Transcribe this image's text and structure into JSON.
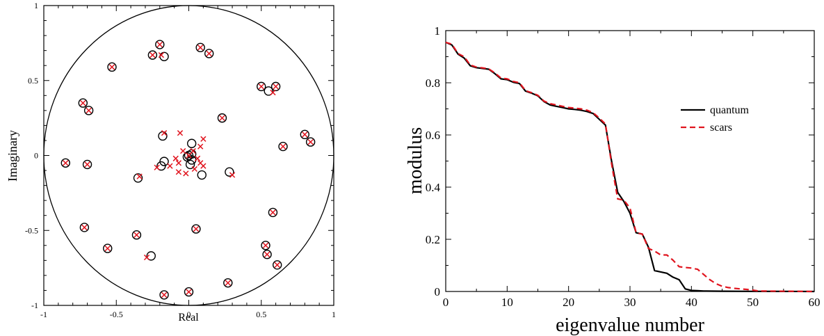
{
  "chart_data": [
    {
      "type": "scatter",
      "xlabel": "Real",
      "ylabel": "Imaginary",
      "xlim": [
        -1,
        1
      ],
      "ylim": [
        -1,
        1
      ],
      "x_ticks": [
        -1,
        -0.5,
        0,
        0.5,
        1
      ],
      "y_ticks": [
        -1,
        -0.5,
        0,
        0.5,
        1
      ],
      "x_tick_labels": [
        "-1",
        "-0.5",
        "0",
        "0.5",
        "1"
      ],
      "y_tick_labels": [
        "-1",
        "-0.5",
        "0",
        "0.5",
        "1"
      ],
      "unit_circle": true,
      "grid": false,
      "colors": {
        "circles": "#000000",
        "crosses": "#e0141e",
        "frame": "#000000"
      },
      "series": [
        {
          "marker": "open-circle",
          "points": [
            [
              -0.2,
              0.74
            ],
            [
              0.08,
              0.72
            ],
            [
              0.14,
              0.68
            ],
            [
              -0.25,
              0.67
            ],
            [
              -0.17,
              0.66
            ],
            [
              -0.53,
              0.59
            ],
            [
              0.5,
              0.46
            ],
            [
              0.6,
              0.46
            ],
            [
              0.55,
              0.43
            ],
            [
              -0.73,
              0.35
            ],
            [
              -0.69,
              0.3
            ],
            [
              0.23,
              0.25
            ],
            [
              0.8,
              0.14
            ],
            [
              0.84,
              0.09
            ],
            [
              -0.18,
              0.13
            ],
            [
              0.65,
              0.06
            ],
            [
              0.02,
              0.08
            ],
            [
              -0.85,
              -0.05
            ],
            [
              -0.7,
              -0.06
            ],
            [
              0.0,
              0.0
            ],
            [
              0.02,
              0.01
            ],
            [
              -0.01,
              -0.01
            ],
            [
              -0.19,
              -0.07
            ],
            [
              -0.17,
              -0.04
            ],
            [
              0.02,
              -0.03
            ],
            [
              0.01,
              -0.06
            ],
            [
              0.09,
              -0.13
            ],
            [
              0.28,
              -0.11
            ],
            [
              -0.35,
              -0.15
            ],
            [
              0.58,
              -0.38
            ],
            [
              -0.72,
              -0.48
            ],
            [
              0.05,
              -0.49
            ],
            [
              -0.36,
              -0.53
            ],
            [
              0.53,
              -0.6
            ],
            [
              -0.56,
              -0.62
            ],
            [
              0.54,
              -0.66
            ],
            [
              -0.26,
              -0.67
            ],
            [
              0.61,
              -0.73
            ],
            [
              0.27,
              -0.85
            ],
            [
              0.0,
              -0.91
            ],
            [
              -0.17,
              -0.93
            ]
          ]
        },
        {
          "marker": "cross",
          "points": [
            [
              -0.2,
              0.74
            ],
            [
              0.08,
              0.72
            ],
            [
              0.14,
              0.68
            ],
            [
              -0.25,
              0.67
            ],
            [
              -0.19,
              0.67
            ],
            [
              -0.53,
              0.59
            ],
            [
              0.5,
              0.46
            ],
            [
              0.6,
              0.46
            ],
            [
              0.58,
              0.42
            ],
            [
              -0.73,
              0.35
            ],
            [
              -0.69,
              0.3
            ],
            [
              0.23,
              0.25
            ],
            [
              0.8,
              0.14
            ],
            [
              0.84,
              0.09
            ],
            [
              -0.17,
              0.15
            ],
            [
              -0.06,
              0.15
            ],
            [
              0.1,
              0.11
            ],
            [
              0.65,
              0.06
            ],
            [
              0.08,
              0.06
            ],
            [
              -0.04,
              0.03
            ],
            [
              0.03,
              0.03
            ],
            [
              -0.09,
              -0.02
            ],
            [
              0.06,
              -0.02
            ],
            [
              -0.85,
              -0.05
            ],
            [
              -0.7,
              -0.06
            ],
            [
              0.0,
              0.0
            ],
            [
              0.08,
              -0.05
            ],
            [
              0.1,
              -0.07
            ],
            [
              -0.07,
              -0.05
            ],
            [
              -0.13,
              -0.07
            ],
            [
              -0.22,
              -0.08
            ],
            [
              0.04,
              -0.09
            ],
            [
              -0.07,
              -0.11
            ],
            [
              -0.02,
              -0.12
            ],
            [
              0.3,
              -0.13
            ],
            [
              -0.34,
              -0.14
            ],
            [
              0.58,
              -0.38
            ],
            [
              -0.72,
              -0.48
            ],
            [
              0.05,
              -0.49
            ],
            [
              -0.36,
              -0.53
            ],
            [
              0.53,
              -0.6
            ],
            [
              -0.56,
              -0.62
            ],
            [
              0.54,
              -0.66
            ],
            [
              -0.29,
              -0.68
            ],
            [
              0.61,
              -0.73
            ],
            [
              0.27,
              -0.85
            ],
            [
              0.0,
              -0.91
            ],
            [
              -0.17,
              -0.93
            ]
          ]
        }
      ]
    },
    {
      "type": "line",
      "xlabel": "eigenvalue number",
      "ylabel": "modulus",
      "xlim": [
        0,
        60
      ],
      "ylim": [
        0,
        1
      ],
      "x_ticks": [
        0,
        10,
        20,
        30,
        40,
        50,
        60
      ],
      "y_ticks": [
        0,
        0.2,
        0.4,
        0.6,
        0.8,
        1
      ],
      "x_tick_labels": [
        "0",
        "10",
        "20",
        "30",
        "40",
        "50",
        "60"
      ],
      "y_tick_labels": [
        "0",
        "0.2",
        "0.4",
        "0.6",
        "0.8",
        "1"
      ],
      "grid": false,
      "legend_position": "upper-right, inside",
      "series": [
        {
          "name": "quantum",
          "color": "#000000",
          "dash": "solid",
          "points": [
            [
              0,
              0.955
            ],
            [
              1,
              0.945
            ],
            [
              2,
              0.91
            ],
            [
              3,
              0.895
            ],
            [
              4,
              0.865
            ],
            [
              5,
              0.858
            ],
            [
              6,
              0.855
            ],
            [
              7,
              0.852
            ],
            [
              8,
              0.835
            ],
            [
              9,
              0.815
            ],
            [
              10,
              0.812
            ],
            [
              11,
              0.802
            ],
            [
              12,
              0.797
            ],
            [
              13,
              0.768
            ],
            [
              14,
              0.76
            ],
            [
              15,
              0.75
            ],
            [
              16,
              0.728
            ],
            [
              17,
              0.715
            ],
            [
              18,
              0.71
            ],
            [
              19,
              0.705
            ],
            [
              20,
              0.7
            ],
            [
              21,
              0.698
            ],
            [
              22,
              0.695
            ],
            [
              23,
              0.69
            ],
            [
              24,
              0.682
            ],
            [
              25,
              0.66
            ],
            [
              26,
              0.638
            ],
            [
              27,
              0.5
            ],
            [
              28,
              0.38
            ],
            [
              29,
              0.345
            ],
            [
              30,
              0.3
            ],
            [
              31,
              0.225
            ],
            [
              32,
              0.22
            ],
            [
              33,
              0.17
            ],
            [
              34,
              0.08
            ],
            [
              35,
              0.075
            ],
            [
              36,
              0.07
            ],
            [
              37,
              0.055
            ],
            [
              38,
              0.045
            ],
            [
              39,
              0.01
            ],
            [
              40,
              0.004
            ],
            [
              41,
              0.003
            ],
            [
              42,
              0.002
            ],
            [
              45,
              0.001
            ],
            [
              50,
              0.0005
            ],
            [
              55,
              0.0002
            ],
            [
              60,
              0.0
            ]
          ]
        },
        {
          "name": "scars",
          "color": "#e0141e",
          "dash": "dashed",
          "points": [
            [
              0,
              0.955
            ],
            [
              1,
              0.948
            ],
            [
              2,
              0.912
            ],
            [
              3,
              0.9
            ],
            [
              4,
              0.868
            ],
            [
              5,
              0.86
            ],
            [
              6,
              0.857
            ],
            [
              7,
              0.853
            ],
            [
              8,
              0.838
            ],
            [
              9,
              0.818
            ],
            [
              10,
              0.815
            ],
            [
              11,
              0.805
            ],
            [
              12,
              0.8
            ],
            [
              13,
              0.77
            ],
            [
              14,
              0.762
            ],
            [
              15,
              0.752
            ],
            [
              16,
              0.73
            ],
            [
              17,
              0.72
            ],
            [
              18,
              0.715
            ],
            [
              19,
              0.71
            ],
            [
              20,
              0.705
            ],
            [
              21,
              0.703
            ],
            [
              22,
              0.7
            ],
            [
              23,
              0.695
            ],
            [
              24,
              0.685
            ],
            [
              25,
              0.665
            ],
            [
              26,
              0.642
            ],
            [
              27,
              0.49
            ],
            [
              28,
              0.355
            ],
            [
              29,
              0.35
            ],
            [
              30,
              0.32
            ],
            [
              31,
              0.225
            ],
            [
              32,
              0.22
            ],
            [
              33,
              0.165
            ],
            [
              34,
              0.155
            ],
            [
              35,
              0.14
            ],
            [
              36,
              0.14
            ],
            [
              37,
              0.12
            ],
            [
              38,
              0.095
            ],
            [
              39,
              0.092
            ],
            [
              40,
              0.09
            ],
            [
              41,
              0.085
            ],
            [
              42,
              0.065
            ],
            [
              43,
              0.045
            ],
            [
              44,
              0.03
            ],
            [
              45,
              0.02
            ],
            [
              46,
              0.015
            ],
            [
              47,
              0.012
            ],
            [
              48,
              0.01
            ],
            [
              49,
              0.008
            ],
            [
              50,
              0.005
            ],
            [
              51,
              0.002
            ],
            [
              55,
              0.001
            ],
            [
              60,
              0.0
            ]
          ]
        }
      ]
    }
  ]
}
